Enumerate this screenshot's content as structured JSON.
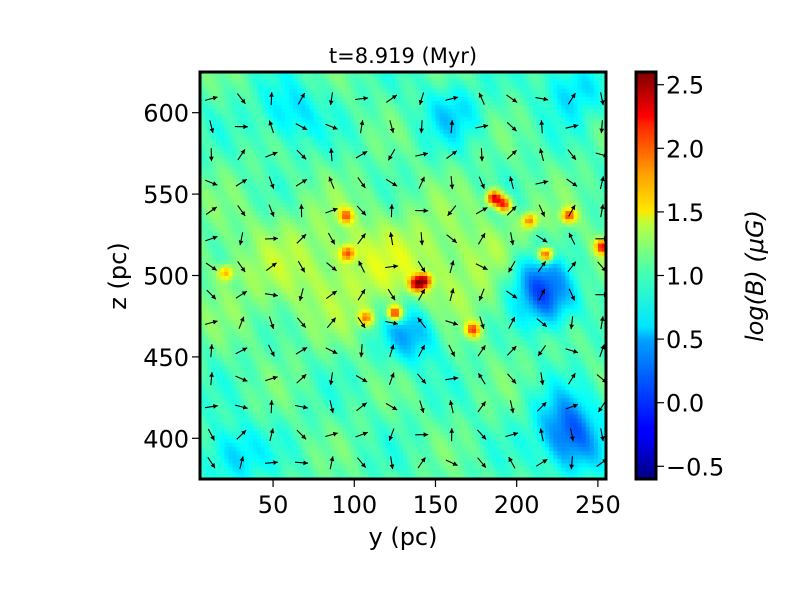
{
  "chart_data": {
    "type": "heatmap",
    "title": "t=8.919 (Myr)",
    "xlabel": "y (pc)",
    "ylabel": "z (pc)",
    "xlim": [
      5,
      255
    ],
    "ylim": [
      375,
      625
    ],
    "x_ticks": [
      50,
      100,
      150,
      200,
      250
    ],
    "y_ticks": [
      400,
      450,
      500,
      550,
      600
    ],
    "colorbar": {
      "label": "log(B) (μG)",
      "range": [
        -0.6,
        2.6
      ],
      "ticks": [
        -0.5,
        0.0,
        0.5,
        1.0,
        1.5,
        2.0,
        2.5
      ],
      "tick_labels": [
        "−0.5",
        "0.0",
        "0.5",
        "1.0",
        "1.5",
        "2.0",
        "2.5"
      ],
      "colormap": "jet"
    },
    "field_description": "log(B) map with overlaid magnetic field direction arrows",
    "base_level": 0.85,
    "hotspots": [
      {
        "y": 186,
        "z": 548,
        "value": 2.3
      },
      {
        "y": 192,
        "z": 544,
        "value": 2.0
      },
      {
        "y": 143,
        "z": 497,
        "value": 2.1
      },
      {
        "y": 138,
        "z": 495,
        "value": 1.9
      },
      {
        "y": 125,
        "z": 477,
        "value": 2.2
      },
      {
        "y": 218,
        "z": 513,
        "value": 2.2
      },
      {
        "y": 253,
        "z": 518,
        "value": 2.1
      },
      {
        "y": 232,
        "z": 537,
        "value": 1.9
      },
      {
        "y": 96,
        "z": 514,
        "value": 1.8
      },
      {
        "y": 173,
        "z": 467,
        "value": 1.9
      },
      {
        "y": 95,
        "z": 537,
        "value": 1.7
      },
      {
        "y": 208,
        "z": 534,
        "value": 1.8
      },
      {
        "y": 21,
        "z": 502,
        "value": 1.6
      },
      {
        "y": 107,
        "z": 474,
        "value": 1.7
      }
    ],
    "lows": [
      {
        "y": 235,
        "z": 395,
        "value": 0.1
      },
      {
        "y": 220,
        "z": 485,
        "value": -0.1
      },
      {
        "y": 210,
        "z": 500,
        "value": 0.15
      },
      {
        "y": 135,
        "z": 465,
        "value": 0.05
      },
      {
        "y": 25,
        "z": 390,
        "value": 0.3
      },
      {
        "y": 60,
        "z": 600,
        "value": 0.35
      },
      {
        "y": 160,
        "z": 600,
        "value": 0.4
      },
      {
        "y": 235,
        "z": 615,
        "value": 0.35
      },
      {
        "y": 230,
        "z": 412,
        "value": 0.2
      }
    ],
    "arrow_grid": {
      "y_start": 12,
      "y_step": 18.5,
      "z_start": 385,
      "z_step": 17.2
    }
  }
}
